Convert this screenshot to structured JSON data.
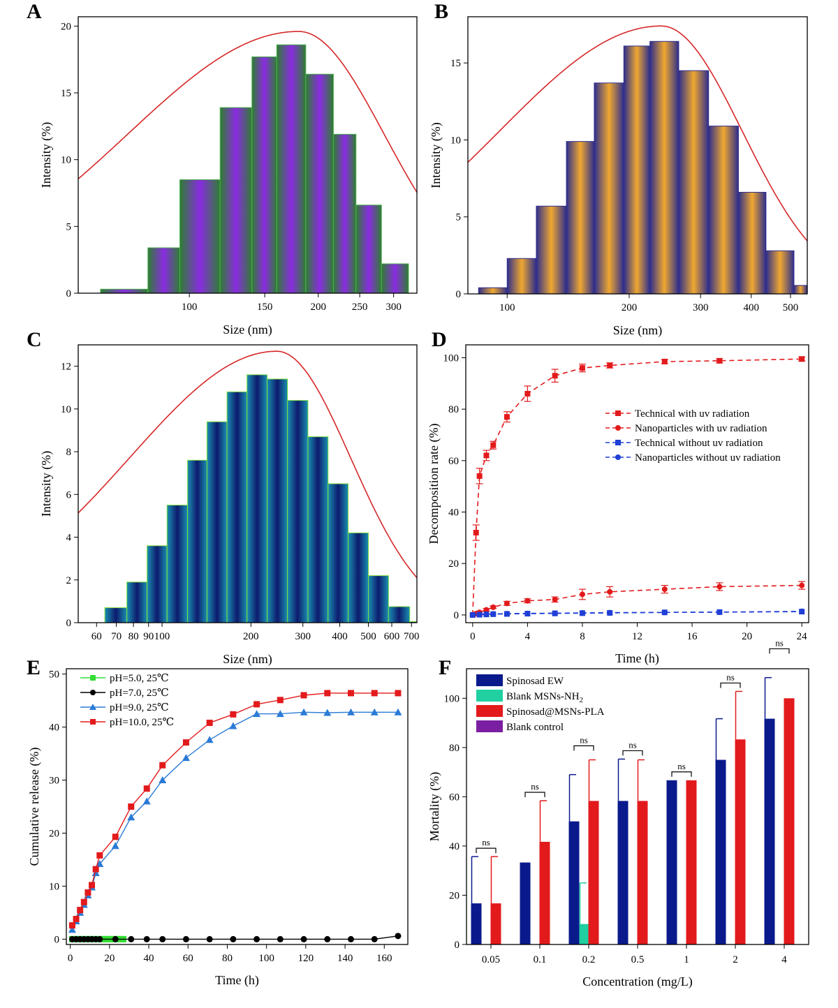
{
  "panels": [
    {
      "id": "A",
      "type": "histogram",
      "scale": "log",
      "xlabel": "Size (nm)",
      "ylabel": "Intensity (%)",
      "xlim": [
        55,
        340
      ],
      "ylim": [
        0,
        20.7
      ],
      "yticks": [
        0,
        5,
        10,
        15,
        20
      ],
      "xticks": [
        {
          "v": 100,
          "label": "100"
        },
        {
          "v": 150,
          "label": "150"
        },
        {
          "v": 200,
          "label": "200"
        },
        {
          "v": 250,
          "label": "250"
        },
        {
          "v": 300,
          "label": "300"
        }
      ],
      "bins": [
        [
          62,
          80,
          0.3
        ],
        [
          80,
          95,
          3.4
        ],
        [
          95,
          118,
          8.5
        ],
        [
          118,
          140,
          13.9
        ],
        [
          140,
          160,
          17.7
        ],
        [
          160,
          187,
          18.6
        ],
        [
          187,
          217,
          16.4
        ],
        [
          217,
          245,
          11.9
        ],
        [
          245,
          281,
          6.6
        ],
        [
          281,
          325,
          2.2
        ]
      ],
      "fill_colors": [
        "#8a2be2",
        "#2e7d32"
      ],
      "fit": {
        "peak": 180,
        "height": 19.6,
        "sigma_left": 0.4,
        "sigma_right": 0.2,
        "color": "#d62728"
      }
    },
    {
      "id": "B",
      "type": "histogram",
      "scale": "log",
      "xlabel": "Size (nm)",
      "ylabel": "Intensity (%)",
      "xlim": [
        80,
        550
      ],
      "ylim": [
        0,
        18
      ],
      "yticks": [
        0,
        5,
        10,
        15
      ],
      "xticks": [
        {
          "v": 100,
          "label": "100"
        },
        {
          "v": 200,
          "label": "200"
        },
        {
          "v": 300,
          "label": "300"
        },
        {
          "v": 400,
          "label": "400"
        },
        {
          "v": 500,
          "label": "500"
        }
      ],
      "bins": [
        [
          85,
          100,
          0.4
        ],
        [
          100,
          118,
          2.3
        ],
        [
          118,
          140,
          5.7
        ],
        [
          140,
          164,
          9.9
        ],
        [
          164,
          194,
          13.7
        ],
        [
          194,
          225,
          16.1
        ],
        [
          225,
          265,
          16.4
        ],
        [
          265,
          314,
          14.5
        ],
        [
          314,
          372,
          10.9
        ],
        [
          372,
          435,
          6.6
        ],
        [
          435,
          510,
          2.8
        ],
        [
          510,
          600,
          0.55
        ]
      ],
      "fill_colors": [
        "#f0a830",
        "#2e2e8c"
      ],
      "fit": {
        "peak": 240,
        "height": 17.4,
        "sigma_left": 0.4,
        "sigma_right": 0.2,
        "color": "#d62728"
      }
    },
    {
      "id": "C",
      "type": "histogram",
      "scale": "log",
      "xlabel": "Size (nm)",
      "ylabel": "Intensity (%)",
      "xlim": [
        52,
        730
      ],
      "ylim": [
        0,
        13
      ],
      "yticks": [
        0,
        2,
        4,
        6,
        8,
        10,
        12
      ],
      "xticks": [
        {
          "v": 60,
          "label": "60"
        },
        {
          "v": 70,
          "label": "70"
        },
        {
          "v": 80,
          "label": "80"
        },
        {
          "v": 90,
          "label": "90"
        },
        {
          "v": 100,
          "label": "100"
        },
        {
          "v": 200,
          "label": "200"
        },
        {
          "v": 300,
          "label": "300"
        },
        {
          "v": 400,
          "label": "400"
        },
        {
          "v": 500,
          "label": "500"
        },
        {
          "v": 600,
          "label": "600"
        },
        {
          "v": 700,
          "label": "700"
        }
      ],
      "bins": [
        [
          64,
          76,
          0.7
        ],
        [
          76,
          89,
          1.9
        ],
        [
          89,
          104,
          3.6
        ],
        [
          104,
          122,
          5.5
        ],
        [
          122,
          142,
          7.6
        ],
        [
          142,
          166,
          9.4
        ],
        [
          166,
          194,
          10.8
        ],
        [
          194,
          227,
          11.6
        ],
        [
          227,
          266,
          11.4
        ],
        [
          266,
          312,
          10.4
        ],
        [
          312,
          365,
          8.7
        ],
        [
          365,
          427,
          6.5
        ],
        [
          427,
          500,
          4.2
        ],
        [
          500,
          585,
          2.2
        ],
        [
          585,
          690,
          0.75
        ],
        [
          690,
          760,
          0.05
        ]
      ],
      "fill_colors": [
        "#1a8fb0",
        "#0d1a6e"
      ],
      "fit": {
        "peak": 245,
        "height": 12.7,
        "sigma_left": 0.5,
        "sigma_right": 0.25,
        "color": "#d62728"
      }
    }
  ],
  "chart_data": [
    {
      "type": "line",
      "panel": "D",
      "xlabel": "Time (h)",
      "ylabel": "Decomposition rate (%)",
      "xlim": [
        -0.5,
        24.5
      ],
      "ylim": [
        -3,
        105
      ],
      "xticks": [
        0,
        4,
        8,
        12,
        16,
        20,
        24
      ],
      "yticks": [
        0,
        20,
        40,
        60,
        80,
        100
      ],
      "legend_position": "center-right",
      "series": [
        {
          "name": "Technical with uv radiation",
          "marker": "square",
          "color": "#e31a1c",
          "x": [
            0,
            0.25,
            0.5,
            1,
            1.5,
            2.5,
            4,
            6,
            8,
            10,
            14,
            18,
            24
          ],
          "y": [
            0,
            32,
            54,
            62,
            66,
            77,
            86,
            93,
            96,
            97,
            98.5,
            98.8,
            99.5
          ],
          "err": [
            0,
            3,
            3,
            2,
            1.5,
            2,
            3,
            2.5,
            1.5,
            1,
            0.8,
            0.8,
            0.8
          ]
        },
        {
          "name": "Nanoparticles with uv radiation",
          "marker": "circle",
          "color": "#e31a1c",
          "x": [
            0,
            0.25,
            0.5,
            1,
            1.5,
            2.5,
            4,
            6,
            8,
            10,
            14,
            18,
            24
          ],
          "y": [
            0,
            0.5,
            1,
            2,
            3,
            4.5,
            5.5,
            6,
            8,
            9,
            10,
            11,
            11.5
          ],
          "err": [
            0,
            0.5,
            0.5,
            0.5,
            0.5,
            0.8,
            0.8,
            1,
            2,
            2,
            1.5,
            1.5,
            1.5
          ]
        },
        {
          "name": "Technical without uv radiation",
          "marker": "square",
          "color": "#1f3fd6",
          "x": [
            0,
            0.5,
            1,
            1.5,
            2.5,
            4,
            6,
            8,
            10,
            14,
            18,
            24
          ],
          "y": [
            0,
            0.1,
            0.2,
            0.3,
            0.4,
            0.5,
            0.6,
            0.7,
            0.8,
            1,
            1.1,
            1.3
          ],
          "err": [
            0,
            0,
            0,
            0,
            0,
            0,
            0,
            0,
            0,
            0,
            0,
            0
          ]
        },
        {
          "name": "Nanoparticles without uv radiation",
          "marker": "circle",
          "color": "#1f3fd6",
          "x": [
            0,
            0.5,
            1,
            1.5,
            2.5,
            4,
            6,
            8,
            10,
            14,
            18,
            24
          ],
          "y": [
            0,
            0.2,
            0.3,
            0.4,
            0.5,
            0.6,
            0.7,
            0.8,
            0.9,
            1,
            1.1,
            1.4
          ],
          "err": [
            0,
            0,
            0,
            0,
            0,
            0,
            0,
            0,
            0,
            0,
            0,
            0
          ]
        }
      ]
    },
    {
      "type": "line",
      "panel": "E",
      "xlabel": "Time (h)",
      "ylabel": "Cumulative release (%)",
      "xlim": [
        -2,
        172
      ],
      "ylim": [
        -1,
        51
      ],
      "xticks": [
        0,
        20,
        40,
        60,
        80,
        100,
        120,
        140,
        160
      ],
      "yticks": [
        0,
        10,
        20,
        30,
        40,
        50
      ],
      "legend_position": "top-left",
      "series": [
        {
          "name": "pH=5.0, 25℃",
          "marker": "square",
          "color": "#33dd33",
          "x": [
            1,
            2,
            3,
            4,
            5,
            6,
            7,
            8,
            9,
            10,
            11,
            12,
            13,
            14,
            15,
            16,
            17,
            18,
            19,
            20,
            21,
            22,
            23,
            24,
            25,
            26,
            27
          ],
          "y": [
            0,
            0,
            0,
            0,
            0,
            0,
            0,
            0,
            0,
            0,
            0,
            0,
            0,
            0,
            0,
            0,
            0,
            0,
            0,
            0,
            0,
            0,
            0,
            0,
            0,
            0,
            0
          ]
        },
        {
          "name": "pH=7.0, 25℃",
          "marker": "circle",
          "color": "#000000",
          "x": [
            1,
            3,
            5,
            7,
            9,
            11,
            13,
            15,
            23,
            31,
            39,
            47,
            59,
            71,
            83,
            95,
            107,
            119,
            131,
            143,
            155,
            167
          ],
          "y": [
            0,
            0,
            0,
            0,
            0,
            0,
            0,
            0,
            0,
            0,
            0,
            0,
            0,
            0,
            0,
            0,
            0,
            0,
            0,
            0,
            0,
            0.6
          ]
        },
        {
          "name": "pH=9.0, 25℃",
          "marker": "triangle",
          "color": "#2b7bd6",
          "x": [
            1,
            3,
            5,
            7,
            9,
            11,
            13,
            15,
            23,
            31,
            39,
            47,
            59,
            71,
            83,
            95,
            107,
            119,
            131,
            143,
            155,
            167
          ],
          "y": [
            1.8,
            3.4,
            5,
            6.5,
            8.3,
            9.8,
            12.5,
            14.2,
            17.6,
            23,
            26,
            30,
            34.2,
            37.6,
            40.2,
            42.5,
            42.5,
            42.8,
            42.7,
            42.8,
            42.8,
            42.8
          ]
        },
        {
          "name": "pH=10.0, 25℃",
          "marker": "square",
          "color": "#e31a1c",
          "x": [
            1,
            3,
            5,
            7,
            9,
            11,
            13,
            15,
            23,
            31,
            39,
            47,
            59,
            71,
            83,
            95,
            107,
            119,
            131,
            143,
            155,
            167
          ],
          "y": [
            2.6,
            3.8,
            5.5,
            7,
            8.8,
            10.2,
            13.2,
            15.8,
            19.3,
            25,
            28.4,
            32.8,
            37.1,
            40.8,
            42.4,
            44.3,
            45.1,
            46,
            46.4,
            46.4,
            46.4,
            46.4
          ]
        }
      ]
    },
    {
      "type": "bar",
      "panel": "F",
      "xlabel": "Concentration (mg/L)",
      "ylabel": "Mortality (%)",
      "categories": [
        "0.05",
        "0.1",
        "0.2",
        "0.5",
        "1",
        "2",
        "4"
      ],
      "ylim": [
        0,
        112
      ],
      "yticks": [
        0,
        20,
        40,
        60,
        80,
        100
      ],
      "legend_position": "top-left",
      "series": [
        {
          "name": "Spinosad EW",
          "color": "#0a1a8c",
          "values": [
            16.7,
            33.3,
            50,
            58.3,
            66.7,
            75,
            91.7
          ],
          "err": [
            19,
            0,
            19,
            17,
            0,
            16.7,
            16.7
          ]
        },
        {
          "name": "Blank MSNs-NH2",
          "color": "#20d0a0",
          "values": [
            0,
            0,
            8.3,
            0,
            0,
            0,
            0
          ],
          "err": [
            0,
            0,
            16.7,
            0,
            0,
            0,
            0
          ]
        },
        {
          "name": "Spinosad@MSNs-PLA",
          "color": "#e31a1c",
          "values": [
            16.7,
            41.7,
            58.3,
            58.3,
            66.7,
            83.3,
            100
          ],
          "err": [
            19,
            16.7,
            16.7,
            16.7,
            0,
            19.5,
            0
          ]
        },
        {
          "name": "Blank control",
          "color": "#7b1fa2",
          "values": [
            0,
            0,
            0,
            0,
            0,
            0,
            0
          ],
          "err": [
            0,
            0,
            0,
            0,
            0,
            0,
            0
          ]
        }
      ],
      "significance": [
        "ns",
        "ns",
        "ns",
        "ns",
        "ns",
        "ns",
        "ns"
      ]
    }
  ]
}
